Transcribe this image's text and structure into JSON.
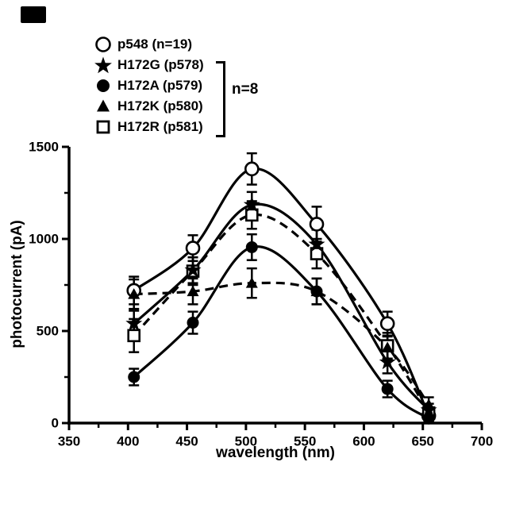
{
  "panel_marker": {
    "color": "#000000"
  },
  "legend": {
    "items": [
      {
        "label": "p548 (n=19)",
        "marker": "open-circle"
      },
      {
        "label": "H172G (p578)",
        "marker": "filled-star"
      },
      {
        "label": "H172A (p579)",
        "marker": "filled-circle"
      },
      {
        "label": "H172K (p580)",
        "marker": "filled-triangle"
      },
      {
        "label": "H172R (p581)",
        "marker": "open-square"
      }
    ],
    "bracket_label": "n=8"
  },
  "chart_data": {
    "type": "line",
    "title": "",
    "xlabel": "wavelength (nm)",
    "ylabel": "photocurrent (pA)",
    "xlim": [
      350,
      700
    ],
    "ylim": [
      0,
      1500
    ],
    "x_ticks": [
      350,
      400,
      450,
      500,
      550,
      600,
      650,
      700
    ],
    "x_minor_ticks": [
      375,
      425,
      475,
      525,
      575,
      625,
      675
    ],
    "y_ticks": [
      0,
      500,
      1000,
      1500
    ],
    "y_minor_ticks": [
      250,
      750,
      1250
    ],
    "grid": false,
    "legend_position": "top-left",
    "x": [
      405,
      455,
      505,
      560,
      620,
      655
    ],
    "series": [
      {
        "name": "p548 (n=19)",
        "marker": "open-circle",
        "line": "solid",
        "values": [
          720,
          950,
          1380,
          1080,
          540,
          40
        ],
        "errors": [
          75,
          70,
          85,
          95,
          65,
          30
        ]
      },
      {
        "name": "H172G (p578)",
        "marker": "filled-star",
        "line": "solid",
        "values": [
          540,
          830,
          1185,
          970,
          330,
          70
        ],
        "errors": [
          70,
          70,
          70,
          80,
          60,
          35
        ]
      },
      {
        "name": "H172A (p579)",
        "marker": "filled-circle",
        "line": "solid",
        "values": [
          250,
          545,
          955,
          715,
          185,
          25
        ],
        "errors": [
          45,
          60,
          70,
          70,
          45,
          20
        ]
      },
      {
        "name": "H172K (p580)",
        "marker": "filled-triangle",
        "line": "dashed",
        "values": [
          700,
          715,
          760,
          715,
          410,
          100
        ],
        "errors": [
          80,
          70,
          80,
          70,
          60,
          40
        ]
      },
      {
        "name": "H172R (p581)",
        "marker": "open-square",
        "line": "dashed",
        "values": [
          475,
          825,
          1130,
          920,
          420,
          55
        ],
        "errors": [
          90,
          75,
          75,
          80,
          70,
          30
        ]
      }
    ],
    "colors": {
      "foreground": "#000000",
      "background": "#ffffff"
    }
  }
}
